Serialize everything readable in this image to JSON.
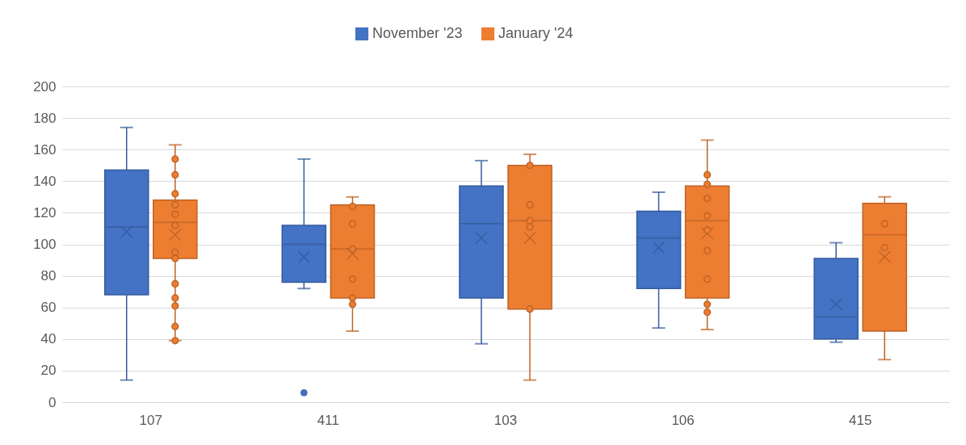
{
  "chart_data": {
    "type": "box",
    "categories": [
      "107",
      "411",
      "103",
      "106",
      "415"
    ],
    "ylim": [
      0,
      200
    ],
    "yticks": [
      0,
      20,
      40,
      60,
      80,
      100,
      120,
      140,
      160,
      180,
      200
    ],
    "grid": "y",
    "legend": "top",
    "series": [
      {
        "name": "November '23",
        "color": "#4472c4",
        "boxes": [
          {
            "low": 14,
            "q1": 68,
            "median": 111,
            "q3": 147,
            "high": 174,
            "mean": 108
          },
          {
            "low": 72,
            "q1": 76,
            "median": 100,
            "q3": 112,
            "high": 154,
            "mean": 92,
            "outliers": [
              6
            ]
          },
          {
            "low": 37,
            "q1": 66,
            "median": 113,
            "q3": 137,
            "high": 153,
            "mean": 104
          },
          {
            "low": 47,
            "q1": 72,
            "median": 104,
            "q3": 121,
            "high": 133,
            "mean": 98
          },
          {
            "low": 38,
            "q1": 40,
            "median": 54,
            "q3": 91,
            "high": 101,
            "mean": 62
          }
        ]
      },
      {
        "name": "January '24",
        "color": "#ed7d31",
        "boxes": [
          {
            "low": 39,
            "q1": 91,
            "median": 114,
            "q3": 128,
            "high": 163,
            "mean": 106
          },
          {
            "low": 45,
            "q1": 66,
            "median": 97,
            "q3": 125,
            "high": 130,
            "mean": 94
          },
          {
            "low": 14,
            "q1": 59,
            "median": 115,
            "q3": 150,
            "high": 157,
            "mean": 104
          },
          {
            "low": 46,
            "q1": 66,
            "median": 115,
            "q3": 137,
            "high": 166,
            "mean": 107
          },
          {
            "low": 27,
            "q1": 45,
            "median": 106,
            "q3": 126,
            "high": 130,
            "mean": 92
          }
        ]
      },
      {
        "type": "scatter",
        "color": "#ed7d31",
        "x": [
          "107",
          "107",
          "107",
          "107",
          "107",
          "107",
          "107",
          "107",
          "107",
          "107",
          "107",
          "107",
          "107",
          "411",
          "411",
          "411",
          "411",
          "411",
          "411",
          "103",
          "103",
          "103",
          "103",
          "103",
          "106",
          "106",
          "106",
          "106",
          "106",
          "106",
          "106",
          "106",
          "106",
          "415",
          "415"
        ],
        "values": [
          154,
          144,
          132,
          125,
          119,
          112,
          95,
          91,
          75,
          66,
          61,
          48,
          39,
          124,
          113,
          97,
          78,
          66,
          62,
          150,
          125,
          115,
          111,
          59,
          144,
          138,
          129,
          118,
          109,
          96,
          78,
          62,
          57,
          113,
          98
        ]
      }
    ]
  }
}
